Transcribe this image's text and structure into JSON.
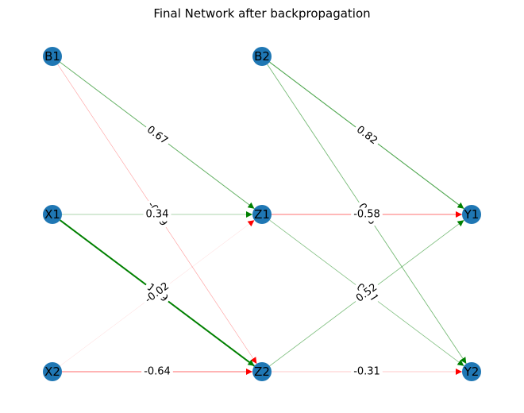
{
  "title": "Final Network after backpropagation",
  "colors": {
    "node": "#1f77b4",
    "positive": "#008000",
    "negative": "#ff0000"
  },
  "nodes": [
    {
      "id": "B1",
      "label": "B1",
      "layer": 0,
      "row": 0
    },
    {
      "id": "X1",
      "label": "X1",
      "layer": 0,
      "row": 1
    },
    {
      "id": "X2",
      "label": "X2",
      "layer": 0,
      "row": 2
    },
    {
      "id": "B2",
      "label": "B2",
      "layer": 1,
      "row": 0
    },
    {
      "id": "Z1",
      "label": "Z1",
      "layer": 1,
      "row": 1
    },
    {
      "id": "Z2",
      "label": "Z2",
      "layer": 1,
      "row": 2
    },
    {
      "id": "Y1",
      "label": "Y1",
      "layer": 2,
      "row": 1
    },
    {
      "id": "Y2",
      "label": "Y2",
      "layer": 2,
      "row": 2
    }
  ],
  "edges": [
    {
      "from": "B1",
      "to": "Z1",
      "weight": 0.67,
      "label": "0.67"
    },
    {
      "from": "B1",
      "to": "Z2",
      "weight": -0.29,
      "label": "-0.29"
    },
    {
      "from": "X1",
      "to": "Z1",
      "weight": 0.34,
      "label": "0.34"
    },
    {
      "from": "X1",
      "to": "Z2",
      "weight": 1.69,
      "label": "1.69"
    },
    {
      "from": "X2",
      "to": "Z1",
      "weight": -0.02,
      "label": "-0.02"
    },
    {
      "from": "X2",
      "to": "Z2",
      "weight": -0.64,
      "label": "-0.64"
    },
    {
      "from": "B2",
      "to": "Y1",
      "weight": 0.82,
      "label": "0.82"
    },
    {
      "from": "B2",
      "to": "Y2",
      "weight": 0.56,
      "label": "0.56"
    },
    {
      "from": "Z1",
      "to": "Y1",
      "weight": -0.58,
      "label": "-0.58"
    },
    {
      "from": "Z1",
      "to": "Y2",
      "weight": 0.47,
      "label": "0.47"
    },
    {
      "from": "Z2",
      "to": "Y1",
      "weight": 0.52,
      "label": "0.52"
    },
    {
      "from": "Z2",
      "to": "Y2",
      "weight": -0.31,
      "label": "-0.31"
    }
  ]
}
